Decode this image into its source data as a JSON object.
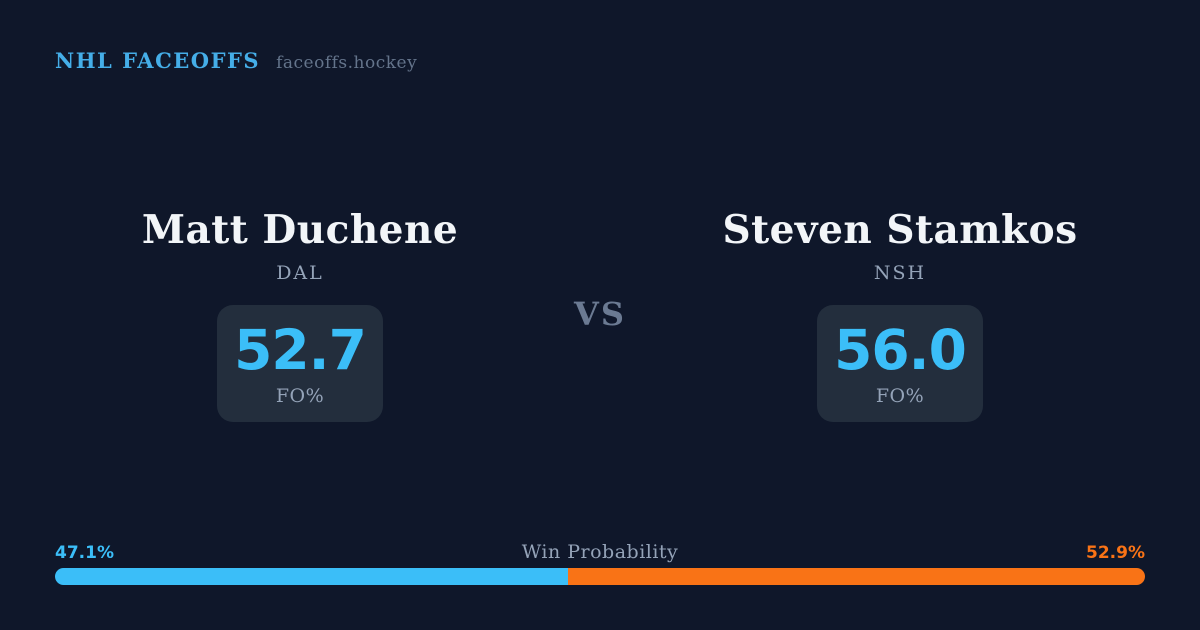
{
  "header": {
    "brand": "NHL FACEOFFS",
    "site": "faceoffs.hockey"
  },
  "vs_label": "VS",
  "players": {
    "left": {
      "name": "Matt Duchene",
      "team": "DAL",
      "stat_value": "52.7",
      "stat_label": "FO%"
    },
    "right": {
      "name": "Steven Stamkos",
      "team": "NSH",
      "stat_value": "56.0",
      "stat_label": "FO%"
    }
  },
  "win_probability": {
    "label": "Win Probability",
    "left_percent_label": "47.1%",
    "right_percent_label": "52.9%",
    "left_value": 47.1,
    "right_value": 52.9
  },
  "colors": {
    "background": "#0f172a",
    "card": "#232e3d",
    "accent_blue": "#3bbef8",
    "accent_orange": "#f97316",
    "brand_blue": "#45aee8",
    "muted_gray": "#94a3b8",
    "text_white": "#f2f5f8"
  }
}
